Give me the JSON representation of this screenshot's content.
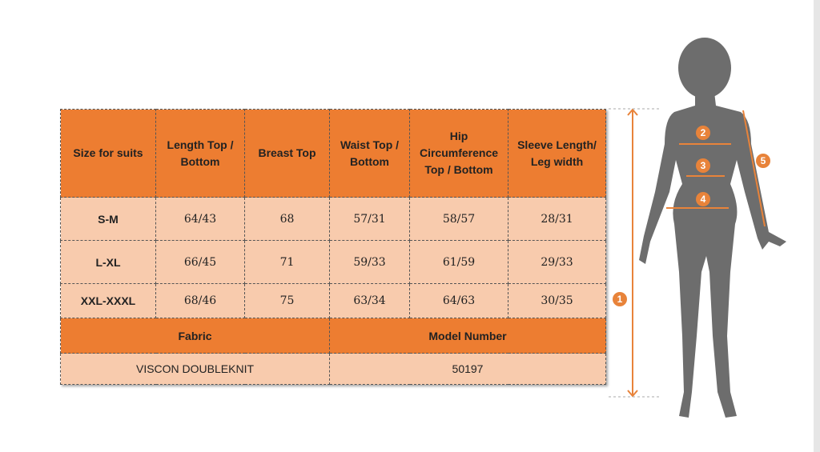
{
  "table": {
    "headers": [
      "Size for suits",
      "Length Top / Bottom",
      "Breast Top",
      "Waist Top / Bottom",
      "Hip Circumference Top / Bottom",
      "Sleeve Length/ Leg width"
    ],
    "rows": [
      [
        "S-M",
        "64/43",
        "68",
        "57/31",
        "58/57",
        "28/31"
      ],
      [
        "L-XL",
        "66/45",
        "71",
        "59/33",
        "61/59",
        "29/33"
      ],
      [
        "XXL-XXXL",
        "68/46",
        "75",
        "63/34",
        "64/63",
        "30/35"
      ]
    ],
    "fabric_label": "Fabric",
    "model_label": "Model Number",
    "fabric_value": "VISCON DOUBLEKNIT",
    "model_value": "50197"
  },
  "figure": {
    "markers": [
      "1",
      "2",
      "3",
      "4",
      "5"
    ]
  },
  "colors": {
    "header": "#ed7d31",
    "cell": "#f8cbad",
    "silhouette": "#6d6d6d"
  }
}
